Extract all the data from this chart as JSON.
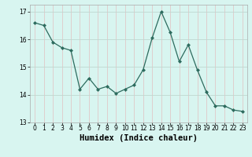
{
  "x": [
    0,
    1,
    2,
    3,
    4,
    5,
    6,
    7,
    8,
    9,
    10,
    11,
    12,
    13,
    14,
    15,
    16,
    17,
    18,
    19,
    20,
    21,
    22,
    23
  ],
  "y": [
    16.6,
    16.5,
    15.9,
    15.7,
    15.6,
    14.2,
    14.6,
    14.2,
    14.3,
    14.05,
    14.2,
    14.35,
    14.9,
    16.05,
    17.0,
    16.25,
    15.2,
    15.8,
    14.9,
    14.1,
    13.6,
    13.6,
    13.45,
    13.4
  ],
  "line_color": "#2d6b5e",
  "marker": "D",
  "marker_size": 2.0,
  "bg_color": "#d8f5f0",
  "grid_color": "#c8e8e0",
  "grid_color_minor": "#e8d8d8",
  "xlabel": "Humidex (Indice chaleur)",
  "xlim": [
    -0.5,
    23.5
  ],
  "ylim": [
    13,
    17.25
  ],
  "yticks": [
    13,
    14,
    15,
    16,
    17
  ],
  "xticks": [
    0,
    1,
    2,
    3,
    4,
    5,
    6,
    7,
    8,
    9,
    10,
    11,
    12,
    13,
    14,
    15,
    16,
    17,
    18,
    19,
    20,
    21,
    22,
    23
  ],
  "tick_fontsize": 5.5,
  "xlabel_fontsize": 7.5,
  "linewidth": 0.9
}
